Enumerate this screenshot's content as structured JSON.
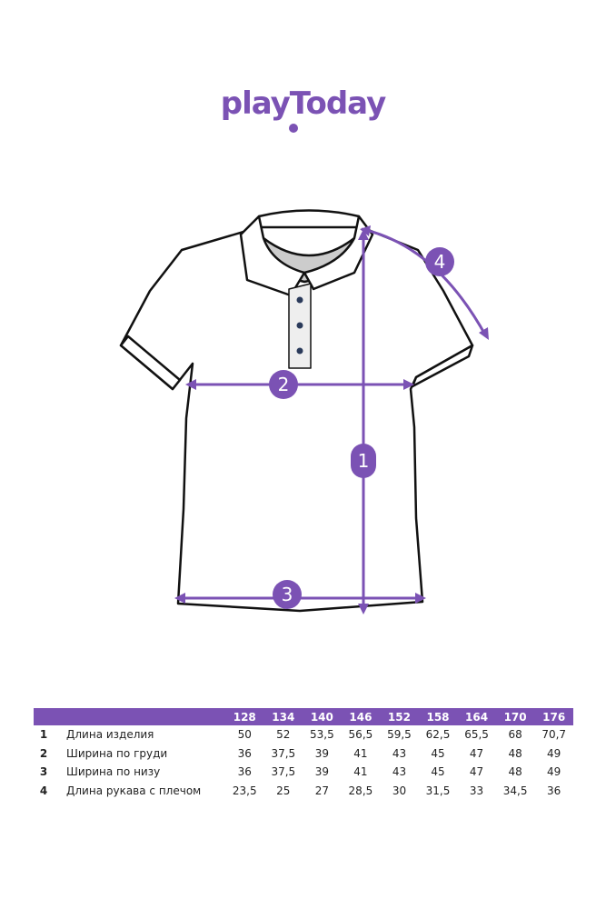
{
  "brand": {
    "logo_text": "playToday",
    "color": "#7b52b4"
  },
  "diagram": {
    "markers": [
      "1",
      "2",
      "3",
      "4"
    ]
  },
  "table": {
    "sizes": [
      "128",
      "134",
      "140",
      "146",
      "152",
      "158",
      "164",
      "170",
      "176"
    ],
    "rows": [
      {
        "num": "1",
        "label": "Длина изделия",
        "values": [
          "50",
          "52",
          "53,5",
          "56,5",
          "59,5",
          "62,5",
          "65,5",
          "68",
          "70,7"
        ]
      },
      {
        "num": "2",
        "label": "Ширина по груди",
        "values": [
          "36",
          "37,5",
          "39",
          "41",
          "43",
          "45",
          "47",
          "48",
          "49"
        ]
      },
      {
        "num": "3",
        "label": "Ширина по низу",
        "values": [
          "36",
          "37,5",
          "39",
          "41",
          "43",
          "45",
          "47",
          "48",
          "49"
        ]
      },
      {
        "num": "4",
        "label": "Длина рукава с плечом",
        "values": [
          "23,5",
          "25",
          "27",
          "28,5",
          "30",
          "31,5",
          "33",
          "34,5",
          "36"
        ]
      }
    ]
  }
}
